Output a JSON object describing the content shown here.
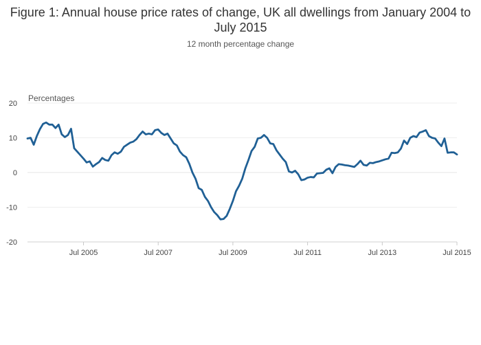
{
  "chart_data": {
    "type": "line",
    "title": "Figure 1: Annual house price rates of change, UK all dwellings from January 2004 to July 2015",
    "subtitle": "12 month percentage change",
    "ylabel": "Percentages",
    "xlabel": "",
    "ylim": [
      -20,
      20
    ],
    "y_ticks": [
      20,
      10,
      0,
      -10,
      -20
    ],
    "x_ticks": [
      "Jul 2005",
      "Jul 2007",
      "Jul 2009",
      "Jul 2011",
      "Jul 2013",
      "Jul 2015"
    ],
    "grid": true,
    "line_color": "#206095",
    "series": [
      {
        "x": [
          "2004-01",
          "2004-02",
          "2004-03",
          "2004-04",
          "2004-05",
          "2004-06",
          "2004-07",
          "2004-08",
          "2004-09",
          "2004-10",
          "2004-11",
          "2004-12",
          "2005-01",
          "2005-02",
          "2005-03",
          "2005-04",
          "2005-05",
          "2005-06",
          "2005-07",
          "2005-08",
          "2005-09",
          "2005-10",
          "2005-11",
          "2005-12",
          "2006-01",
          "2006-02",
          "2006-03",
          "2006-04",
          "2006-05",
          "2006-06",
          "2006-07",
          "2006-08",
          "2006-09",
          "2006-10",
          "2006-11",
          "2006-12",
          "2007-01",
          "2007-02",
          "2007-03",
          "2007-04",
          "2007-05",
          "2007-06",
          "2007-07",
          "2007-08",
          "2007-09",
          "2007-10",
          "2007-11",
          "2007-12",
          "2008-01",
          "2008-02",
          "2008-03",
          "2008-04",
          "2008-05",
          "2008-06",
          "2008-07",
          "2008-08",
          "2008-09",
          "2008-10",
          "2008-11",
          "2008-12",
          "2009-01",
          "2009-02",
          "2009-03",
          "2009-04",
          "2009-05",
          "2009-06",
          "2009-07",
          "2009-08",
          "2009-09",
          "2009-10",
          "2009-11",
          "2009-12",
          "2010-01",
          "2010-02",
          "2010-03",
          "2010-04",
          "2010-05",
          "2010-06",
          "2010-07",
          "2010-08",
          "2010-09",
          "2010-10",
          "2010-11",
          "2010-12",
          "2011-01",
          "2011-02",
          "2011-03",
          "2011-04",
          "2011-05",
          "2011-06",
          "2011-07",
          "2011-08",
          "2011-09",
          "2011-10",
          "2011-11",
          "2011-12",
          "2012-01",
          "2012-02",
          "2012-03",
          "2012-04",
          "2012-05",
          "2012-06",
          "2012-07",
          "2012-08",
          "2012-09",
          "2012-10",
          "2012-11",
          "2012-12",
          "2013-01",
          "2013-02",
          "2013-03",
          "2013-04",
          "2013-05",
          "2013-06",
          "2013-07",
          "2013-08",
          "2013-09",
          "2013-10",
          "2013-11",
          "2013-12",
          "2014-01",
          "2014-02",
          "2014-03",
          "2014-04",
          "2014-05",
          "2014-06",
          "2014-07",
          "2014-08",
          "2014-09",
          "2014-10",
          "2014-11",
          "2014-12",
          "2015-01",
          "2015-02",
          "2015-03",
          "2015-04",
          "2015-05",
          "2015-06",
          "2015-07"
        ],
        "values": [
          9.8,
          10.0,
          8.0,
          10.5,
          12.5,
          14.0,
          14.4,
          13.8,
          13.8,
          12.8,
          13.8,
          11.0,
          10.2,
          10.8,
          12.6,
          7.0,
          6.0,
          5.0,
          4.0,
          2.9,
          3.2,
          1.7,
          2.4,
          3.0,
          4.2,
          3.6,
          3.4,
          5.0,
          5.8,
          5.4,
          6.0,
          7.4,
          8.0,
          8.6,
          8.9,
          9.6,
          10.8,
          11.8,
          11.0,
          11.2,
          11.0,
          12.2,
          12.4,
          11.4,
          10.8,
          11.2,
          9.8,
          8.4,
          7.8,
          6.0,
          5.0,
          4.4,
          2.5,
          0.0,
          -1.8,
          -4.5,
          -5.0,
          -7.0,
          -8.2,
          -10.0,
          -11.4,
          -12.3,
          -13.5,
          -13.4,
          -12.5,
          -10.5,
          -8.2,
          -5.4,
          -3.8,
          -1.8,
          1.2,
          3.6,
          6.2,
          7.4,
          9.8,
          10.0,
          10.8,
          10.0,
          8.4,
          8.2,
          6.4,
          5.2,
          4.0,
          3.0,
          0.3,
          0.0,
          0.5,
          -0.5,
          -2.2,
          -2.0,
          -1.5,
          -1.3,
          -1.4,
          -0.3,
          -0.2,
          -0.1,
          0.8,
          1.2,
          -0.2,
          1.6,
          2.4,
          2.3,
          2.1,
          2.0,
          1.8,
          1.6,
          2.4,
          3.4,
          2.2,
          2.0,
          2.8,
          2.7,
          3.0,
          3.2,
          3.5,
          3.8,
          4.0,
          5.7,
          5.6,
          5.8,
          6.9,
          9.2,
          8.2,
          10.0,
          10.5,
          10.2,
          11.5,
          11.8,
          12.2,
          10.5,
          10.0,
          9.8,
          8.6,
          7.6,
          9.8,
          5.7,
          5.8,
          5.8,
          5.2
        ]
      }
    ]
  }
}
